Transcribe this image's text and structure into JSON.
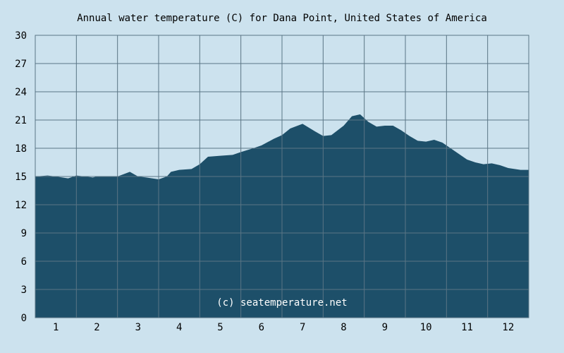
{
  "chart_data": {
    "type": "area",
    "title": "Annual water temperature (C) for Dana Point, United States of America",
    "xlabel": "",
    "ylabel": "",
    "watermark": "(c) seatemperature.net",
    "x_ticks": [
      "1",
      "2",
      "3",
      "4",
      "5",
      "6",
      "7",
      "8",
      "9",
      "10",
      "11",
      "12"
    ],
    "y_ticks": [
      "0",
      "3",
      "6",
      "9",
      "12",
      "15",
      "18",
      "21",
      "24",
      "27",
      "30"
    ],
    "ylim": [
      0,
      30
    ],
    "xlim": [
      0.5,
      12.5
    ],
    "grid": true,
    "colors": {
      "area": "#1d4f69",
      "background": "#cce2ee",
      "grid": "#5a7585",
      "watermark": "#ffffff"
    },
    "series": [
      {
        "x": [
          0.5,
          0.8,
          1.0,
          1.3,
          1.5,
          1.9,
          2.0,
          2.3,
          2.5,
          2.8,
          3.0,
          3.2,
          3.5,
          3.7,
          3.8,
          4.0,
          4.3,
          4.5,
          4.7,
          5.0,
          5.3,
          5.5,
          5.8,
          6.0,
          6.3,
          6.5,
          6.7,
          7.0,
          7.3,
          7.5,
          7.7,
          8.0,
          8.2,
          8.4,
          8.6,
          8.8,
          9.0,
          9.2,
          9.4,
          9.6,
          9.8,
          10.0,
          10.2,
          10.4,
          10.6,
          10.8,
          11.0,
          11.2,
          11.4,
          11.6,
          11.8,
          12.0,
          12.3,
          12.5
        ],
        "values": [
          15.0,
          15.1,
          15.0,
          14.8,
          15.1,
          14.9,
          15.0,
          15.0,
          15.0,
          15.5,
          15.0,
          14.9,
          14.7,
          15.0,
          15.5,
          15.7,
          15.8,
          16.3,
          17.1,
          17.2,
          17.3,
          17.6,
          18.0,
          18.3,
          19.0,
          19.4,
          20.1,
          20.6,
          19.8,
          19.3,
          19.4,
          20.4,
          21.4,
          21.6,
          20.8,
          20.3,
          20.4,
          20.4,
          19.9,
          19.3,
          18.8,
          18.7,
          18.9,
          18.6,
          18.0,
          17.4,
          16.8,
          16.5,
          16.3,
          16.4,
          16.2,
          15.9,
          15.7,
          15.7
        ]
      }
    ]
  }
}
